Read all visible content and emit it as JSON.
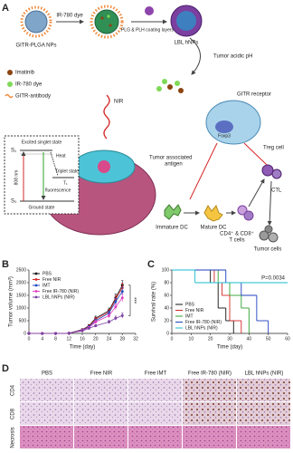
{
  "figure": {
    "panels": [
      "A",
      "B",
      "C",
      "D"
    ]
  },
  "diagram": {
    "np_label": "GITR-PLGA NPs",
    "dye_step": "IR-780 dye",
    "coating_step": "PLG & PLH coating layers",
    "lbl_label": "LBL hNPs",
    "ph_label": "Tumor acidic pH",
    "legend": [
      "Imatinib",
      "IR-780 dye",
      "GITR-antibody"
    ],
    "gitr_receptor": "GITR receptor",
    "foxp3": "Foxp3",
    "treg": "Treg cell",
    "antigen": [
      "Tumor associated",
      "antigen"
    ],
    "immature_dc": "Immature DC",
    "mature_dc": "Mature DC",
    "t_cells": [
      "CD4⁺ & CD8⁺",
      "T cells"
    ],
    "ctl": "CTL",
    "tumor_cells": "Tumor cells",
    "nir": "NIR",
    "jablonski": {
      "excited": "Excited singlet state",
      "s1": "S₁",
      "heat": "Heat",
      "triplet": "Triplet state",
      "t1": "T₁",
      "fluorescence": "fluorescence",
      "ground": "Ground state",
      "s0": "S₀",
      "laser": "808 nm"
    }
  },
  "chart_data": [
    {
      "type": "line",
      "x_label": "Time (day)",
      "y_label": "Tumor volume (mm³)",
      "x": [
        0,
        4,
        8,
        12,
        16,
        18,
        20,
        24,
        26,
        28
      ],
      "series": [
        {
          "name": "PBS",
          "color": "#111111",
          "values": [
            0,
            0,
            0,
            10,
            150,
            300,
            600,
            900,
            1400,
            1900
          ],
          "errors": [
            0,
            0,
            0,
            5,
            30,
            50,
            80,
            100,
            150,
            180
          ]
        },
        {
          "name": "Free NIR",
          "color": "#d62728",
          "values": [
            0,
            0,
            0,
            10,
            140,
            280,
            560,
            850,
            1350,
            1800
          ],
          "errors": [
            0,
            0,
            0,
            5,
            30,
            50,
            70,
            100,
            140,
            170
          ]
        },
        {
          "name": "IMT",
          "color": "#1f4fbf",
          "values": [
            0,
            0,
            0,
            10,
            130,
            260,
            500,
            800,
            1250,
            1650
          ],
          "errors": [
            0,
            0,
            0,
            5,
            25,
            45,
            70,
            90,
            130,
            160
          ]
        },
        {
          "name": "Free IR-780 (NIR)",
          "color": "#e040c0",
          "values": [
            0,
            0,
            0,
            10,
            120,
            230,
            450,
            700,
            1050,
            1400
          ],
          "errors": [
            0,
            0,
            0,
            5,
            25,
            40,
            60,
            90,
            120,
            150
          ]
        },
        {
          "name": "LBL hNPs (NIR)",
          "color": "#7b3fa0",
          "values": [
            0,
            0,
            0,
            10,
            100,
            200,
            300,
            450,
            600,
            700
          ],
          "errors": [
            0,
            0,
            0,
            5,
            20,
            30,
            50,
            60,
            80,
            100
          ]
        }
      ],
      "xlim": [
        0,
        32
      ],
      "xticks": [
        0,
        4,
        8,
        12,
        16,
        20,
        24,
        28,
        32
      ],
      "ylim": [
        0,
        2500
      ],
      "yticks": [
        0,
        500,
        1000,
        1500,
        2000,
        2500
      ],
      "legend": "upper left",
      "annotation": "***"
    },
    {
      "type": "step",
      "x_label": "Time (day)",
      "y_label": "Survival rate (%)",
      "series": [
        {
          "name": "PBS",
          "color": "#111111",
          "x": [
            0,
            20,
            24,
            28,
            32
          ],
          "values": [
            100,
            80,
            40,
            20,
            0
          ]
        },
        {
          "name": "Free NIR",
          "color": "#d62728",
          "x": [
            0,
            22,
            26,
            30,
            36
          ],
          "values": [
            100,
            80,
            60,
            20,
            0
          ]
        },
        {
          "name": "IMT",
          "color": "#2ca02c",
          "x": [
            0,
            24,
            30,
            36,
            40
          ],
          "values": [
            100,
            80,
            60,
            40,
            0
          ]
        },
        {
          "name": "Free IR-780 (NIR)",
          "color": "#1f3fbf",
          "x": [
            0,
            28,
            36,
            44,
            50
          ],
          "values": [
            100,
            80,
            60,
            20,
            0
          ]
        },
        {
          "name": "LBL hNPs (NIR)",
          "color": "#17becf",
          "x": [
            0,
            12,
            60
          ],
          "values": [
            100,
            80,
            80
          ]
        }
      ],
      "xlim": [
        0,
        60
      ],
      "xticks": [
        0,
        10,
        20,
        30,
        40,
        50,
        60
      ],
      "ylim": [
        0,
        100
      ],
      "yticks": [
        0,
        20,
        40,
        60,
        80,
        100
      ],
      "legend": "lower left",
      "annotation": "P=0.0034"
    }
  ],
  "histology": {
    "columns": [
      "PBS",
      "Free NIR",
      "Free IMT",
      "Free IR-780 (NIR)",
      "LBL hNPs (NIR)"
    ],
    "rows": [
      "CD4",
      "CD8",
      "Necrosis"
    ]
  }
}
